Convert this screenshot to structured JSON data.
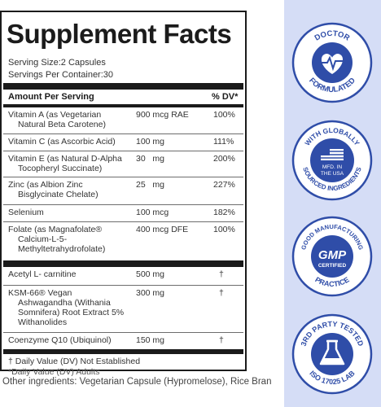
{
  "facts": {
    "title": "Supplement Facts",
    "serving_size": "Serving Size:2 Capsules",
    "servings_per_container": "Servings Per Container:30",
    "header_amount": "Amount Per Serving",
    "header_dv": "% DV*",
    "rows": [
      {
        "name1": "Vitamin A (as Vegetarian",
        "name2": "Natural Beta Carotene)",
        "amount": "900 mcg RAE",
        "dv": "100%"
      },
      {
        "name1": "Vitamin C (as Ascorbic Acid)",
        "name2": "",
        "amount": "100 mg",
        "dv": "111%"
      },
      {
        "name1": "Vitamin E (as Natural D-Alpha",
        "name2": "Tocopheryl Succinate)",
        "amount": "30   mg",
        "dv": "200%"
      },
      {
        "name1": "Zinc (as Albion Zinc",
        "name2": "Bisglycinate Chelate)",
        "amount": "25   mg",
        "dv": "227%"
      },
      {
        "name1": "Selenium",
        "name2": "",
        "amount": "100 mcg",
        "dv": "182%"
      },
      {
        "name1": "Folate (as Magnafolate®",
        "name2": "Calcium-L-5-",
        "name3": "Methyltetrahydrofolate)",
        "amount": "400 mcg DFE",
        "dv": "100%"
      }
    ],
    "rows2": [
      {
        "name1": "Acetyl L- carnitine",
        "amount": "500 mg",
        "dv": "†"
      },
      {
        "name1": "KSM-66® Vegan",
        "name2": "Ashwagandha (Withania",
        "name3": "Somnifera) Root Extract 5%",
        "name4": "Withanolides",
        "amount": "300 mg",
        "dv": "†"
      },
      {
        "name1": "Coenzyme Q10 (Ubiquinol)",
        "amount": "150 mg",
        "dv": "†"
      }
    ],
    "footnote1": "† Daily Value (DV) Not Established",
    "footnote2": "*Daily Value (DV) Adults"
  },
  "other_ingredients": "Other ingredients: Vegetarian Capsule (Hypromelose), Rice Bran",
  "badges": {
    "doctor": {
      "top": "DOCTOR",
      "bottom": "FORMULATED"
    },
    "sourced": {
      "top": "WITH GLOBALLY",
      "bottom": "SOURCED INGREDIENTS",
      "center1": "MFD. IN",
      "center2": "THE USA"
    },
    "gmp": {
      "top": "GOOD MANUFACTURING",
      "bottom": "PRACTICE",
      "center1": "GMP",
      "center2": "CERTIFIED"
    },
    "lab": {
      "top": "3RD PARTY TESTED",
      "bottom": "ISO 17025 LAB"
    }
  },
  "colors": {
    "badge_blue": "#2f4da8",
    "badge_bg": "#d5ddf6",
    "panel_ink": "#1b1b1b"
  }
}
